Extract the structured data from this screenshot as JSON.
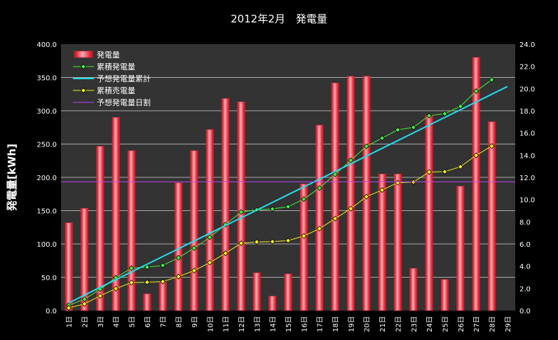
{
  "chart_data": {
    "type": "bar",
    "title": "2012年2月　発電量",
    "ylabel": "発電量[kWh]",
    "ylim": [
      0,
      400
    ],
    "y_ticks": [
      "0.0",
      "50.0",
      "100.0",
      "150.0",
      "200.0",
      "250.0",
      "300.0",
      "350.0",
      "400.0"
    ],
    "y2lim": [
      0,
      24
    ],
    "y2_ticks": [
      "0.0",
      "2.0",
      "4.0",
      "6.0",
      "8.0",
      "10.0",
      "12.0",
      "14.0",
      "16.0",
      "18.0",
      "20.0",
      "22.0",
      "24.0"
    ],
    "categories": [
      "1日",
      "2日",
      "3日",
      "4日",
      "5日",
      "6日",
      "7日",
      "8日",
      "9日",
      "10日",
      "11日",
      "12日",
      "13日",
      "14日",
      "15日",
      "16日",
      "17日",
      "18日",
      "19日",
      "20日",
      "21日",
      "22日",
      "23日",
      "24日",
      "25日",
      "26日",
      "27日",
      "28日",
      "29日"
    ],
    "grid": true,
    "legend_placement": "top-left",
    "series": [
      {
        "name": "発電量",
        "type": "bar",
        "axis": "right",
        "color": "#ff3344",
        "values": [
          7.9,
          9.2,
          14.8,
          17.4,
          14.4,
          1.5,
          2.6,
          11.5,
          14.4,
          16.3,
          19.1,
          18.8,
          3.4,
          1.3,
          3.3,
          11.4,
          16.7,
          20.5,
          21.1,
          21.1,
          12.3,
          12.3,
          3.8,
          17.6,
          2.8,
          11.2,
          22.8,
          17.0,
          null
        ]
      },
      {
        "name": "累積発電量",
        "type": "line",
        "axis": "left",
        "color": "#44ee44",
        "values": [
          7.9,
          17.1,
          31.9,
          49.3,
          63.7,
          65.2,
          67.8,
          79.3,
          93.7,
          110.0,
          129.1,
          147.9,
          151.3,
          152.6,
          155.9,
          167.3,
          184.0,
          204.5,
          225.6,
          246.7,
          259.0,
          271.3,
          275.1,
          292.7,
          295.5,
          306.7,
          329.5,
          346.5,
          null
        ]
      },
      {
        "name": "予想発電量累計",
        "type": "line",
        "axis": "left",
        "color": "#22ddee",
        "values": [
          11.6,
          23.2,
          34.8,
          46.4,
          58.0,
          69.6,
          81.2,
          92.8,
          104.4,
          116.0,
          127.6,
          139.2,
          150.8,
          162.4,
          174.0,
          185.6,
          197.2,
          208.8,
          220.4,
          232.0,
          243.6,
          255.2,
          266.8,
          278.4,
          290.0,
          301.6,
          313.2,
          324.8,
          336.4
        ]
      },
      {
        "name": "累積売電量",
        "type": "line",
        "axis": "left",
        "color": "#eeee22",
        "values": [
          4.0,
          10.0,
          22.0,
          33.0,
          42.0,
          42.5,
          43.5,
          51.0,
          60.0,
          72.0,
          86.0,
          101.0,
          103.0,
          103.5,
          105.0,
          112.0,
          123.0,
          138.0,
          153.0,
          171.0,
          181.0,
          192.0,
          193.0,
          208.0,
          208.5,
          216.0,
          233.0,
          247.0,
          null
        ]
      },
      {
        "name": "予想発電量日割",
        "type": "line",
        "axis": "right",
        "color": "#bb44ee",
        "values": [
          11.6,
          11.6,
          11.6,
          11.6,
          11.6,
          11.6,
          11.6,
          11.6,
          11.6,
          11.6,
          11.6,
          11.6,
          11.6,
          11.6,
          11.6,
          11.6,
          11.6,
          11.6,
          11.6,
          11.6,
          11.6,
          11.6,
          11.6,
          11.6,
          11.6,
          11.6,
          11.6,
          11.6,
          11.6
        ]
      }
    ]
  }
}
